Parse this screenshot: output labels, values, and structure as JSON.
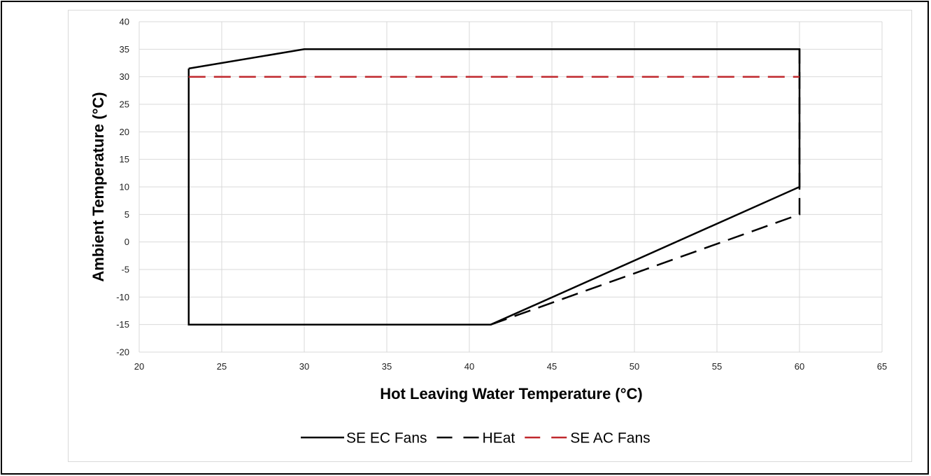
{
  "chart_data": {
    "type": "line",
    "title": "",
    "xlabel": "Hot Leaving Water Temperature (°C)",
    "ylabel": "Ambient Temperature (°C)",
    "xlim": [
      20,
      65
    ],
    "ylim": [
      -20,
      40
    ],
    "x_ticks": [
      "20",
      "25",
      "30",
      "35",
      "40",
      "45",
      "50",
      "55",
      "60",
      "65"
    ],
    "y_ticks": [
      "-20",
      "-15",
      "-10",
      "-5",
      "0",
      "5",
      "10",
      "15",
      "20",
      "25",
      "30",
      "35",
      "40"
    ],
    "grid": true,
    "legend_position": "bottom",
    "series": [
      {
        "name": "SE EC Fans",
        "style": "solid",
        "color": "#000000",
        "points": [
          [
            23,
            31.5
          ],
          [
            23,
            -15
          ],
          [
            41.3,
            -15
          ],
          [
            60,
            10
          ],
          [
            60,
            35
          ],
          [
            30,
            35
          ],
          [
            23,
            31.5
          ]
        ]
      },
      {
        "name": "HEat",
        "style": "dashed",
        "color": "#000000",
        "points": [
          [
            41.3,
            -15
          ],
          [
            60,
            5
          ],
          [
            60,
            35
          ]
        ]
      },
      {
        "name": "SE AC Fans",
        "style": "dashed",
        "color": "#c0282d",
        "points": [
          [
            23,
            30
          ],
          [
            60,
            30
          ]
        ]
      }
    ]
  }
}
